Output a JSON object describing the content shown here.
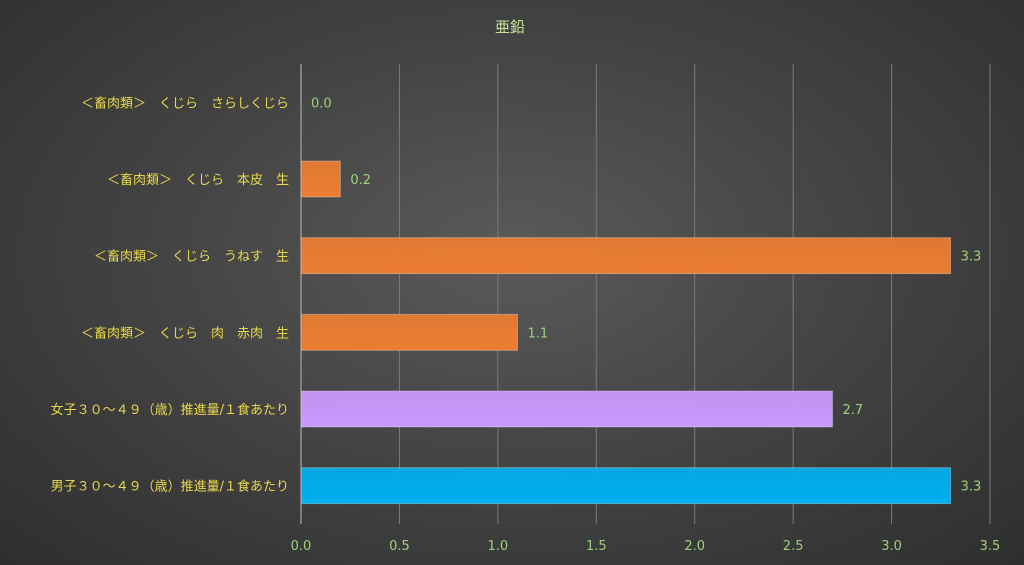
{
  "chart_data": {
    "type": "bar",
    "orientation": "horizontal",
    "title": "亜鉛",
    "categories": [
      "＜畜肉類＞　くじら　さらしくじら",
      "＜畜肉類＞　くじら　本皮　生",
      "＜畜肉類＞　くじら　うねす　生",
      "＜畜肉類＞　くじら　肉　赤肉　生",
      "女子３０～４９（歳）推進量/１食あたり",
      "男子３０～４９（歳）推進量/１食あたり"
    ],
    "values": [
      0.0,
      0.2,
      3.3,
      1.1,
      2.7,
      3.3
    ],
    "data_labels": [
      "0.0",
      "0.2",
      "3.3",
      "1.1",
      "2.7",
      "3.3"
    ],
    "bar_colors": [
      "#ed7d31",
      "#ed7d31",
      "#ed7d31",
      "#ed7d31",
      "#cc99ff",
      "#00b0f0"
    ],
    "xlim": [
      0,
      3.5
    ],
    "xticks": [
      0,
      0.5,
      1.0,
      1.5,
      2.0,
      2.5,
      3.0,
      3.5
    ],
    "xtick_labels": [
      "0.0",
      "0.5",
      "1.0",
      "1.5",
      "2.0",
      "2.5",
      "3.0",
      "3.5"
    ],
    "grid": true,
    "legend": "none"
  }
}
